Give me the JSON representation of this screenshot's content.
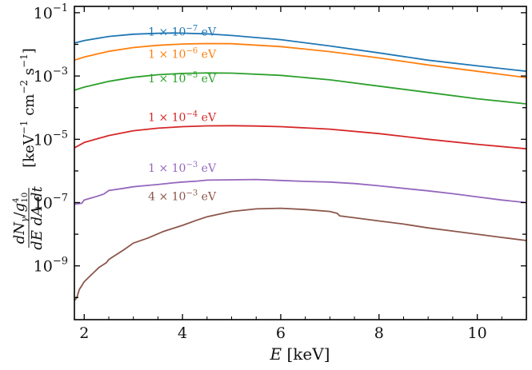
{
  "chart_data": {
    "type": "line",
    "title": "",
    "xlabel": "E [keV]",
    "ylabel": "dN_γ/g^4_10 / dE dA dt [keV^-1 cm^-2 s^-1]",
    "xlim": [
      1.8,
      11.0
    ],
    "ylim_log10": [
      -10.7,
      -0.8
    ],
    "yscale": "log",
    "xticks": [
      2,
      4,
      6,
      8,
      10
    ],
    "xtick_labels": [
      "2",
      "4",
      "6",
      "8",
      "10"
    ],
    "yticks_log10": [
      -1,
      -3,
      -5,
      -7,
      -9
    ],
    "ytick_labels": [
      "10^-1",
      "10^-3",
      "10^-5",
      "10^-7",
      "10^-9"
    ],
    "grid": false,
    "series": [
      {
        "name": "1 × 10^-7 eV",
        "color": "#1f77b4",
        "x": [
          1.8,
          2,
          2.5,
          3,
          3.5,
          3.8,
          4,
          4.5,
          5,
          6,
          7,
          8,
          9,
          10,
          11
        ],
        "y_log10": [
          -1.96,
          -1.88,
          -1.75,
          -1.68,
          -1.65,
          -1.64,
          -1.645,
          -1.67,
          -1.72,
          -1.85,
          -2.05,
          -2.27,
          -2.5,
          -2.68,
          -2.85
        ]
      },
      {
        "name": "1 × 10^-6 eV",
        "color": "#ff7f0e",
        "x": [
          1.8,
          2,
          2.5,
          3,
          3.5,
          4,
          4.5,
          5,
          6,
          7,
          8,
          9,
          10,
          11
        ],
        "y_log10": [
          -2.5,
          -2.4,
          -2.22,
          -2.1,
          -2.03,
          -1.99,
          -1.975,
          -1.98,
          -2.07,
          -2.23,
          -2.43,
          -2.65,
          -2.85,
          -3.05
        ]
      },
      {
        "name": "1 × 10^-5 eV",
        "color": "#2ca02c",
        "x": [
          1.8,
          2,
          2.5,
          3,
          3.5,
          4,
          4.5,
          5,
          6,
          7,
          8,
          9,
          10,
          11
        ],
        "y_log10": [
          -3.45,
          -3.35,
          -3.17,
          -3.04,
          -2.96,
          -2.92,
          -2.905,
          -2.91,
          -2.98,
          -3.12,
          -3.32,
          -3.52,
          -3.72,
          -3.88
        ]
      },
      {
        "name": "1 × 10^-4 eV",
        "color": "#d62728",
        "x": [
          1.8,
          2,
          2.5,
          3,
          3.5,
          4,
          4.5,
          5,
          5.5,
          6,
          7,
          8,
          9,
          10,
          11
        ],
        "y_log10": [
          -5.27,
          -5.1,
          -4.88,
          -4.73,
          -4.65,
          -4.6,
          -4.575,
          -4.57,
          -4.58,
          -4.6,
          -4.68,
          -4.82,
          -5.0,
          -5.16,
          -5.3
        ]
      },
      {
        "name": "1 × 10^-3 eV",
        "color": "#9467bd",
        "x": [
          1.8,
          1.95,
          2.0,
          2.2,
          2.4,
          2.5,
          2.8,
          3.0,
          3.2,
          3.5,
          3.8,
          4.0,
          4.3,
          4.5,
          5.0,
          5.5,
          6.0,
          6.5,
          7.0,
          7.5,
          8.0,
          8.5,
          9.0,
          9.5,
          10.0,
          10.5,
          11.0
        ],
        "y_log10": [
          -7.05,
          -7.02,
          -6.92,
          -6.83,
          -6.73,
          -6.62,
          -6.55,
          -6.5,
          -6.47,
          -6.43,
          -6.38,
          -6.35,
          -6.32,
          -6.29,
          -6.28,
          -6.27,
          -6.3,
          -6.33,
          -6.35,
          -6.4,
          -6.47,
          -6.55,
          -6.63,
          -6.72,
          -6.82,
          -6.92,
          -7.0
        ]
      },
      {
        "name": "4 × 10^-3 eV",
        "color": "#8c564b",
        "x": [
          1.8,
          1.85,
          1.9,
          2.0,
          2.1,
          2.2,
          2.3,
          2.45,
          2.5,
          2.6,
          2.8,
          3.0,
          3.3,
          3.6,
          4.0,
          4.3,
          4.5,
          5.0,
          5.5,
          6.0,
          6.5,
          7.0,
          7.15,
          7.2,
          7.5,
          8.0,
          8.5,
          9.0,
          9.5,
          10.0,
          10.5,
          11.0
        ],
        "y_log10": [
          -10.1,
          -10.0,
          -9.75,
          -9.5,
          -9.35,
          -9.2,
          -9.05,
          -8.9,
          -8.8,
          -8.7,
          -8.5,
          -8.28,
          -8.12,
          -7.92,
          -7.72,
          -7.55,
          -7.45,
          -7.28,
          -7.2,
          -7.18,
          -7.22,
          -7.28,
          -7.34,
          -7.42,
          -7.48,
          -7.58,
          -7.68,
          -7.8,
          -7.9,
          -8.0,
          -8.1,
          -8.2
        ]
      }
    ],
    "annotations": [
      {
        "text": "1 × 10^-7 eV",
        "series": 0,
        "x": 3.3,
        "y_log10": -1.72
      },
      {
        "text": "1 × 10^-6 eV",
        "series": 1,
        "x": 3.3,
        "y_log10": -2.43
      },
      {
        "text": "1 × 10^-5 eV",
        "series": 2,
        "x": 3.3,
        "y_log10": -3.2
      },
      {
        "text": "1 × 10^-4 eV",
        "series": 3,
        "x": 3.3,
        "y_log10": -4.43
      },
      {
        "text": "1 × 10^-3 eV",
        "series": 4,
        "x": 3.3,
        "y_log10": -6.03
      },
      {
        "text": "4 × 10^-3 eV",
        "series": 5,
        "x": 3.3,
        "y_log10": -6.93
      }
    ]
  }
}
